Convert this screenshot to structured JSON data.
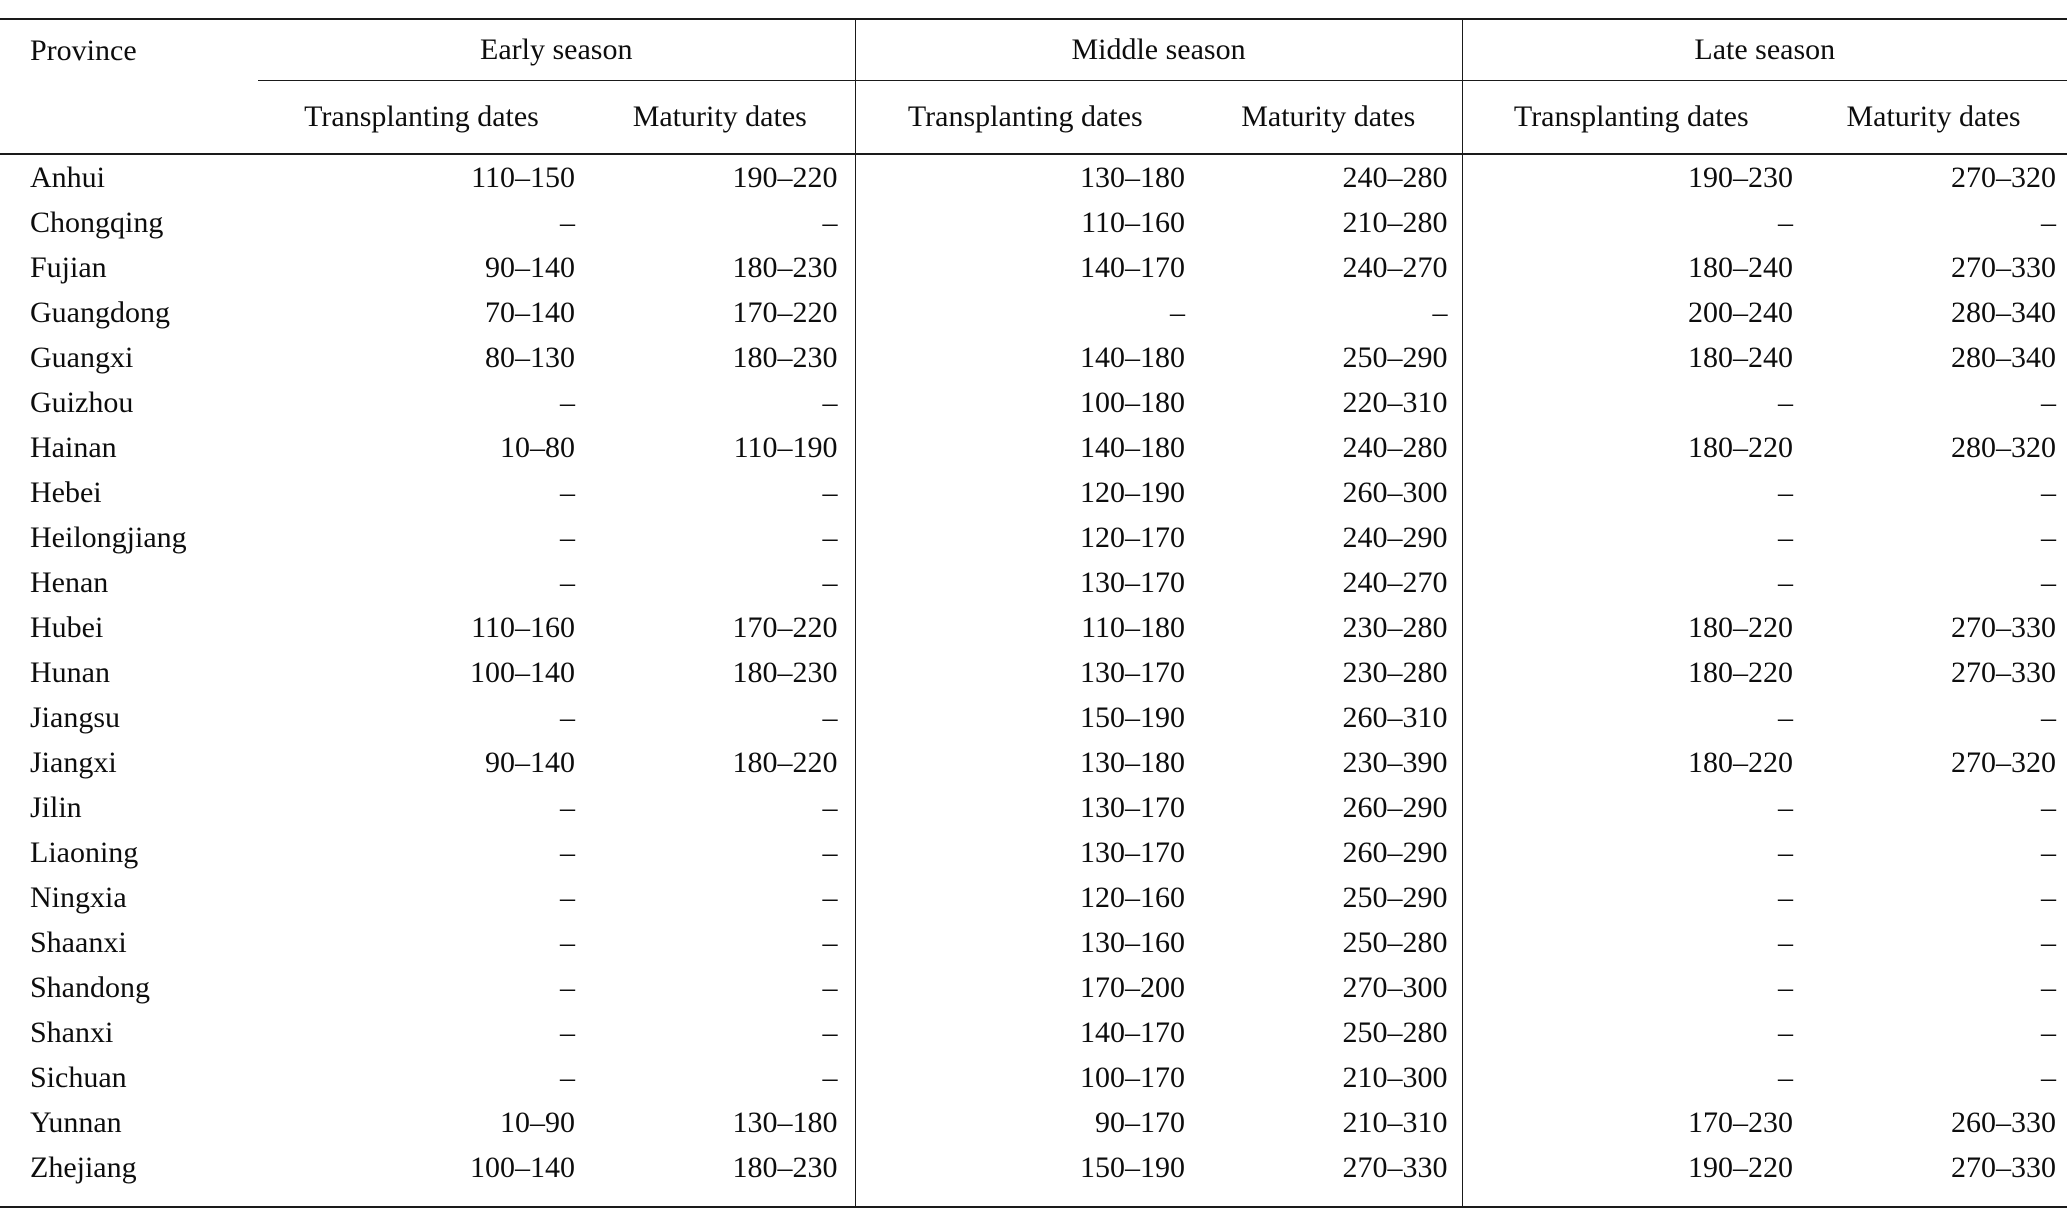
{
  "table": {
    "columns": {
      "province_label": "Province",
      "season_groups": [
        {
          "label": "Early season",
          "subcolumns": [
            "Transplanting dates",
            "Maturity dates"
          ]
        },
        {
          "label": "Middle season",
          "subcolumns": [
            "Transplanting dates",
            "Maturity dates"
          ]
        },
        {
          "label": "Late season",
          "subcolumns": [
            "Transplanting dates",
            "Maturity dates"
          ]
        }
      ]
    },
    "empty_marker": "–",
    "rows": [
      {
        "province": "Anhui",
        "values": [
          "110–150",
          "190–220",
          "130–180",
          "240–280",
          "190–230",
          "270–320"
        ]
      },
      {
        "province": "Chongqing",
        "values": [
          "–",
          "–",
          "110–160",
          "210–280",
          "–",
          "–"
        ]
      },
      {
        "province": "Fujian",
        "values": [
          "90–140",
          "180–230",
          "140–170",
          "240–270",
          "180–240",
          "270–330"
        ]
      },
      {
        "province": "Guangdong",
        "values": [
          "70–140",
          "170–220",
          "–",
          "–",
          "200–240",
          "280–340"
        ]
      },
      {
        "province": "Guangxi",
        "values": [
          "80–130",
          "180–230",
          "140–180",
          "250–290",
          "180–240",
          "280–340"
        ]
      },
      {
        "province": "Guizhou",
        "values": [
          "–",
          "–",
          "100–180",
          "220–310",
          "–",
          "–"
        ]
      },
      {
        "province": "Hainan",
        "values": [
          "10–80",
          "110–190",
          "140–180",
          "240–280",
          "180–220",
          "280–320"
        ]
      },
      {
        "province": "Hebei",
        "values": [
          "–",
          "–",
          "120–190",
          "260–300",
          "–",
          "–"
        ]
      },
      {
        "province": "Heilongjiang",
        "values": [
          "–",
          "–",
          "120–170",
          "240–290",
          "–",
          "–"
        ]
      },
      {
        "province": "Henan",
        "values": [
          "–",
          "–",
          "130–170",
          "240–270",
          "–",
          "–"
        ]
      },
      {
        "province": "Hubei",
        "values": [
          "110–160",
          "170–220",
          "110–180",
          "230–280",
          "180–220",
          "270–330"
        ]
      },
      {
        "province": "Hunan",
        "values": [
          "100–140",
          "180–230",
          "130–170",
          "230–280",
          "180–220",
          "270–330"
        ]
      },
      {
        "province": "Jiangsu",
        "values": [
          "–",
          "–",
          "150–190",
          "260–310",
          "–",
          "–"
        ]
      },
      {
        "province": "Jiangxi",
        "values": [
          "90–140",
          "180–220",
          "130–180",
          "230–390",
          "180–220",
          "270–320"
        ]
      },
      {
        "province": "Jilin",
        "values": [
          "–",
          "–",
          "130–170",
          "260–290",
          "–",
          "–"
        ]
      },
      {
        "province": "Liaoning",
        "values": [
          "–",
          "–",
          "130–170",
          "260–290",
          "–",
          "–"
        ]
      },
      {
        "province": "Ningxia",
        "values": [
          "–",
          "–",
          "120–160",
          "250–290",
          "–",
          "–"
        ]
      },
      {
        "province": "Shaanxi",
        "values": [
          "–",
          "–",
          "130–160",
          "250–280",
          "–",
          "–"
        ]
      },
      {
        "province": "Shandong",
        "values": [
          "–",
          "–",
          "170–200",
          "270–300",
          "–",
          "–"
        ]
      },
      {
        "province": "Shanxi",
        "values": [
          "–",
          "–",
          "140–170",
          "250–280",
          "–",
          "–"
        ]
      },
      {
        "province": "Sichuan",
        "values": [
          "–",
          "–",
          "100–170",
          "210–300",
          "–",
          "–"
        ]
      },
      {
        "province": "Yunnan",
        "values": [
          "10–90",
          "130–180",
          "90–170",
          "210–310",
          "170–230",
          "260–330"
        ]
      },
      {
        "province": "Zhejiang",
        "values": [
          "100–140",
          "180–230",
          "150–190",
          "270–330",
          "190–220",
          "270–330"
        ]
      }
    ]
  }
}
